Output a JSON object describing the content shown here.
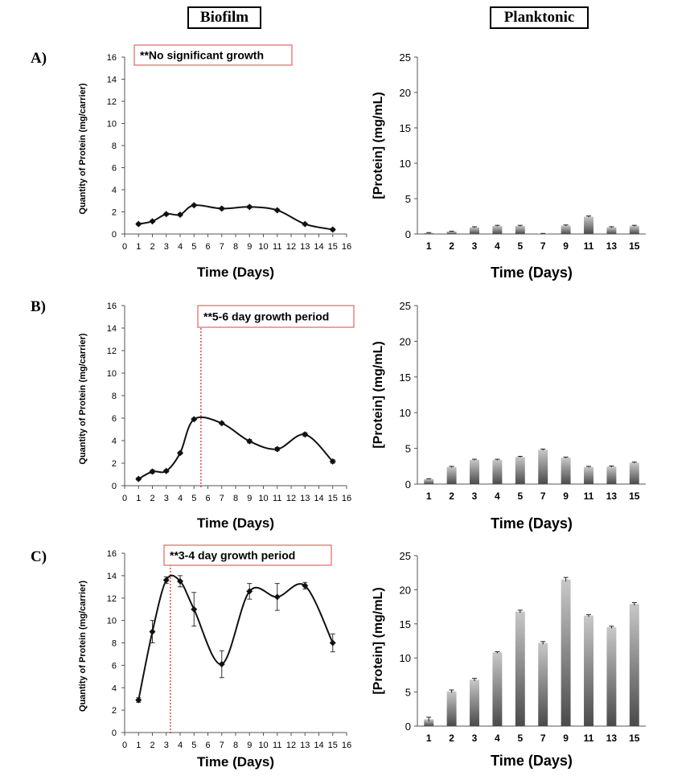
{
  "headers": {
    "biofilm": "Biofilm",
    "planktonic": "Planktonic"
  },
  "panel_labels": [
    "A)",
    "B)",
    "C)"
  ],
  "chart_data": [
    {
      "type": "line",
      "panel": "A)",
      "column": "Biofilm",
      "xlabel": "Time (Days)",
      "ylabel": "Quantity of Protein (mg/carrier)",
      "xlim": [
        0,
        16
      ],
      "ylim": [
        0,
        16
      ],
      "xticks": [
        "0",
        "1",
        "2",
        "3",
        "4",
        "5",
        "6",
        "7",
        "8",
        "9",
        "10",
        "11",
        "12",
        "13",
        "14",
        "15",
        "16"
      ],
      "yticks": [
        "0",
        "2",
        "4",
        "6",
        "8",
        "10",
        "12",
        "14",
        "16"
      ],
      "x": [
        1,
        2,
        3,
        4,
        5,
        7,
        9,
        11,
        13,
        15
      ],
      "y": [
        0.9,
        1.15,
        1.8,
        1.75,
        2.6,
        2.3,
        2.45,
        2.15,
        0.9,
        0.4
      ],
      "err": [
        0.1,
        0.1,
        0.1,
        0.1,
        0.1,
        0.1,
        0.1,
        0.1,
        0.1,
        0.1
      ],
      "annotation": "**No significant growth",
      "vline": null
    },
    {
      "type": "bar",
      "panel": "A)",
      "column": "Planktonic",
      "xlabel": "Time (Days)",
      "ylabel": "[Protein] (mg/mL)",
      "ylim": [
        0,
        25
      ],
      "yticks": [
        "0",
        "5",
        "10",
        "15",
        "20",
        "25"
      ],
      "categories": [
        "1",
        "2",
        "3",
        "4",
        "5",
        "7",
        "9",
        "11",
        "13",
        "15"
      ],
      "values": [
        0.15,
        0.35,
        0.95,
        1.15,
        1.15,
        0.05,
        1.2,
        2.45,
        0.95,
        1.15
      ],
      "err": [
        0.05,
        0.05,
        0.08,
        0.08,
        0.08,
        0.03,
        0.08,
        0.1,
        0.08,
        0.08
      ]
    },
    {
      "type": "line",
      "panel": "B)",
      "column": "Biofilm",
      "xlabel": "Time (Days)",
      "ylabel": "Quantity of Protein (mg/carrier)",
      "xlim": [
        0,
        16
      ],
      "ylim": [
        0,
        16
      ],
      "xticks": [
        "0",
        "1",
        "2",
        "3",
        "4",
        "5",
        "6",
        "7",
        "8",
        "9",
        "10",
        "11",
        "12",
        "13",
        "14",
        "15",
        "16"
      ],
      "yticks": [
        "0",
        "2",
        "4",
        "6",
        "8",
        "10",
        "12",
        "14",
        "16"
      ],
      "x": [
        1,
        2,
        3,
        4,
        5,
        7,
        9,
        11,
        13,
        15
      ],
      "y": [
        0.6,
        1.25,
        1.3,
        2.9,
        5.9,
        5.55,
        3.95,
        3.25,
        4.55,
        2.15
      ],
      "err": [
        0.1,
        0.15,
        0.1,
        0.1,
        0.1,
        0.1,
        0.15,
        0.15,
        0.15,
        0.15
      ],
      "annotation": "**5-6 day growth period",
      "vline": 5.5
    },
    {
      "type": "bar",
      "panel": "B)",
      "column": "Planktonic",
      "xlabel": "Time (Days)",
      "ylabel": "[Protein] (mg/mL)",
      "ylim": [
        0,
        25
      ],
      "yticks": [
        "0",
        "5",
        "10",
        "15",
        "20",
        "25"
      ],
      "categories": [
        "1",
        "2",
        "3",
        "4",
        "5",
        "7",
        "9",
        "11",
        "13",
        "15"
      ],
      "values": [
        0.7,
        2.4,
        3.4,
        3.4,
        3.8,
        4.8,
        3.7,
        2.4,
        2.45,
        3.0
      ],
      "err": [
        0.05,
        0.08,
        0.08,
        0.08,
        0.08,
        0.1,
        0.08,
        0.08,
        0.08,
        0.08
      ]
    },
    {
      "type": "line",
      "panel": "C)",
      "column": "Biofilm",
      "xlabel": "Time (Days)",
      "ylabel": "Quantity of Protein (mg/carrier)",
      "xlim": [
        0,
        16
      ],
      "ylim": [
        0,
        16
      ],
      "xticks": [
        "0",
        "1",
        "2",
        "3",
        "4",
        "5",
        "6",
        "7",
        "8",
        "9",
        "10",
        "11",
        "12",
        "13",
        "14",
        "15",
        "16"
      ],
      "yticks": [
        "0",
        "2",
        "4",
        "6",
        "8",
        "10",
        "12",
        "14",
        "16"
      ],
      "x": [
        1,
        2,
        3,
        4,
        5,
        7,
        9,
        11,
        13,
        15
      ],
      "y": [
        2.9,
        9.0,
        13.6,
        13.5,
        11.0,
        6.1,
        12.6,
        12.1,
        13.1,
        8.0
      ],
      "err": [
        0.2,
        1.0,
        0.3,
        0.5,
        1.5,
        1.2,
        0.7,
        1.2,
        0.3,
        0.8
      ],
      "annotation": "**3-4 day growth period",
      "vline": 3.3
    },
    {
      "type": "bar",
      "panel": "C)",
      "column": "Planktonic",
      "xlabel": "Time (Days)",
      "ylabel": "[Protein] (mg/mL)",
      "ylim": [
        0,
        25
      ],
      "yticks": [
        "0",
        "5",
        "10",
        "15",
        "20",
        "25"
      ],
      "categories": [
        "1",
        "2",
        "3",
        "4",
        "5",
        "7",
        "9",
        "11",
        "13",
        "15"
      ],
      "values": [
        1.0,
        5.1,
        6.8,
        10.8,
        16.8,
        12.2,
        21.5,
        16.2,
        14.5,
        17.9
      ],
      "err": [
        0.3,
        0.2,
        0.2,
        0.1,
        0.2,
        0.2,
        0.3,
        0.15,
        0.15,
        0.2
      ]
    }
  ]
}
